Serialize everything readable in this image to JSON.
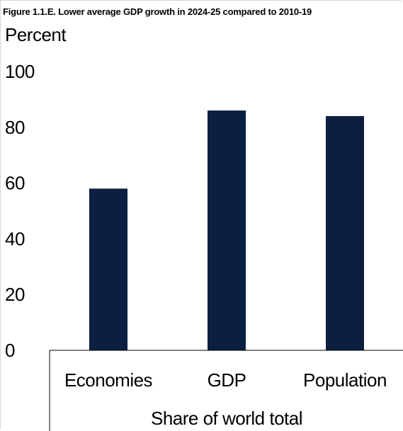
{
  "chart_data": {
    "type": "bar",
    "title": "Figure 1.1.E. Lower average GDP growth in 2024-25 compared to 2010-19",
    "ylabel": "Percent",
    "xlabel": "Share of world total",
    "categories": [
      "Economies",
      "GDP",
      "Population"
    ],
    "values": [
      58,
      86,
      84
    ],
    "ylim": [
      0,
      100
    ],
    "yticks": [
      "0",
      "20",
      "40",
      "60",
      "80",
      "100"
    ],
    "grid": false,
    "legend": "none",
    "bar_color": "#0c1f40"
  }
}
